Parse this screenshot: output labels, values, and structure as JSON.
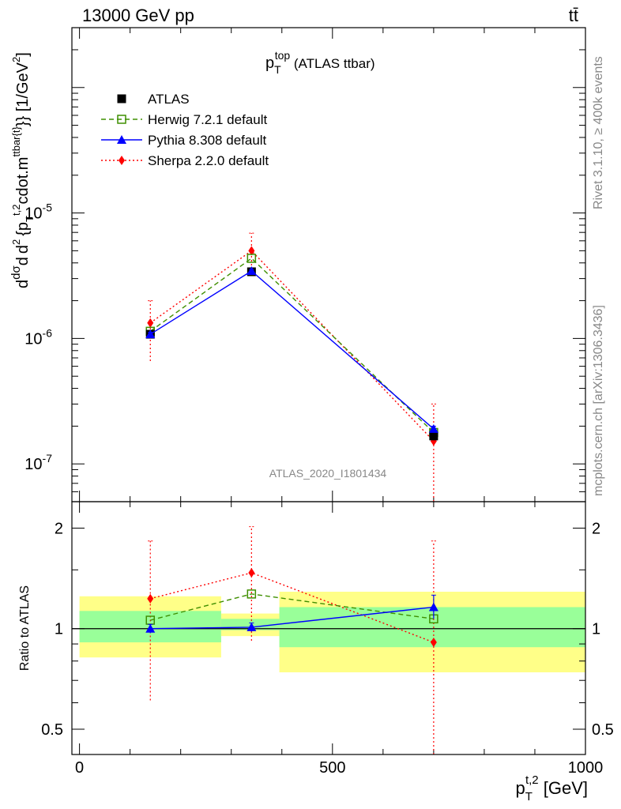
{
  "header": {
    "left": "13000 GeV pp",
    "right": "tt̄"
  },
  "side_labels": {
    "rivet": "Rivet 3.1.10, ≥ 400k events",
    "mcplots": "mcplots.cern.ch [arXiv:1306.3436]"
  },
  "title": {
    "main": "p",
    "sub": "T",
    "sup": "top",
    "rest": " (ATLAS ttbar)"
  },
  "watermark": "ATLAS_2020_I1801434",
  "ratio_ylabel": "Ratio to ATLAS",
  "ylabel_parts": {
    "frac": "dσ",
    "prefix": "d",
    "middle": "d",
    "suffix": "{p",
    "rest": "cdot.m",
    "unit": "}} [1/GeV",
    "unit_end": "]"
  },
  "xlabel": {
    "main": "p",
    "sub": "T",
    "sup": "t,2",
    "unit": " [GeV]"
  },
  "colors": {
    "atlas": "#000000",
    "herwig": "#3f8f00",
    "pythia": "#0000ff",
    "sherpa": "#ff0000",
    "band_inner": "#99ff99",
    "band_outer": "#ffff88"
  },
  "chart_data": [
    {
      "type": "line",
      "panel": "main",
      "yscale": "log",
      "xlim": [
        -15,
        1000
      ],
      "ylim": [
        5e-08,
        0.0003
      ],
      "x_ticks": [
        0,
        500,
        1000
      ],
      "y_ticks": [
        {
          "value": 1e-07,
          "label": "10",
          "exp": "-7"
        },
        {
          "value": 1e-06,
          "label": "10",
          "exp": "-6"
        },
        {
          "value": 1e-05,
          "label": "10",
          "exp": "-5"
        }
      ],
      "legend_position": "top-left",
      "series": [
        {
          "name": "ATLAS",
          "key": "atlas",
          "marker": "square-filled",
          "style": "none",
          "x": [
            140,
            340,
            700
          ],
          "y": [
            1.08e-06,
            3.4e-06,
            1.67e-07
          ]
        },
        {
          "name": "Herwig 7.2.1 default",
          "key": "herwig",
          "marker": "square-open",
          "style": "dashed",
          "x": [
            140,
            340,
            700
          ],
          "y": [
            1.14e-06,
            4.35e-06,
            1.78e-07
          ]
        },
        {
          "name": "Pythia 8.308 default",
          "key": "pythia",
          "marker": "triangle",
          "style": "solid",
          "x": [
            140,
            340,
            700
          ],
          "y": [
            1.08e-06,
            3.45e-06,
            1.9e-07
          ],
          "err_low": [
            1.04e-06,
            3.35e-06,
            1.78e-07
          ],
          "err_high": [
            1.12e-06,
            3.55e-06,
            2e-07
          ]
        },
        {
          "name": "Sherpa 2.2.0 default",
          "key": "sherpa",
          "marker": "diamond",
          "style": "dotted",
          "x": [
            140,
            340,
            700
          ],
          "y": [
            1.33e-06,
            5e-06,
            1.52e-07
          ],
          "err_low": [
            6.6e-07,
            3.3e-06,
            4e-08
          ],
          "err_high": [
            2e-06,
            6.9e-06,
            3e-07
          ]
        }
      ]
    },
    {
      "type": "line",
      "panel": "ratio",
      "yscale": "log",
      "xlim": [
        -15,
        1000
      ],
      "ylim": [
        0.42,
        2.4
      ],
      "y_ticks": [
        {
          "value": 0.5,
          "label": "0.5"
        },
        {
          "value": 1,
          "label": "1"
        },
        {
          "value": 2,
          "label": "2"
        }
      ],
      "bands": [
        {
          "x0": 0,
          "x1": 280,
          "inner": [
            0.91,
            1.13
          ],
          "outer": [
            0.82,
            1.25
          ]
        },
        {
          "x0": 280,
          "x1": 395,
          "inner": [
            0.99,
            1.07
          ],
          "outer": [
            0.95,
            1.11
          ]
        },
        {
          "x0": 395,
          "x1": 1000,
          "inner": [
            0.88,
            1.16
          ],
          "outer": [
            0.74,
            1.29
          ]
        }
      ],
      "series": [
        {
          "name": "Herwig 7.2.1 default",
          "key": "herwig",
          "marker": "square-open",
          "style": "dashed",
          "x": [
            140,
            340,
            700
          ],
          "y": [
            1.06,
            1.27,
            1.07
          ]
        },
        {
          "name": "Pythia 8.308 default",
          "key": "pythia",
          "marker": "triangle",
          "style": "solid",
          "x": [
            140,
            340,
            700
          ],
          "y": [
            1.0,
            1.01,
            1.16
          ],
          "err_low": [
            0.97,
            0.98,
            1.07
          ],
          "err_high": [
            1.03,
            1.04,
            1.26
          ]
        },
        {
          "name": "Sherpa 2.2.0 default",
          "key": "sherpa",
          "marker": "diamond",
          "style": "dotted",
          "x": [
            140,
            340,
            700
          ],
          "y": [
            1.23,
            1.47,
            0.91
          ],
          "err_low": [
            0.61,
            0.92,
            0.36
          ],
          "err_high": [
            1.83,
            2.02,
            1.83
          ]
        }
      ]
    }
  ]
}
